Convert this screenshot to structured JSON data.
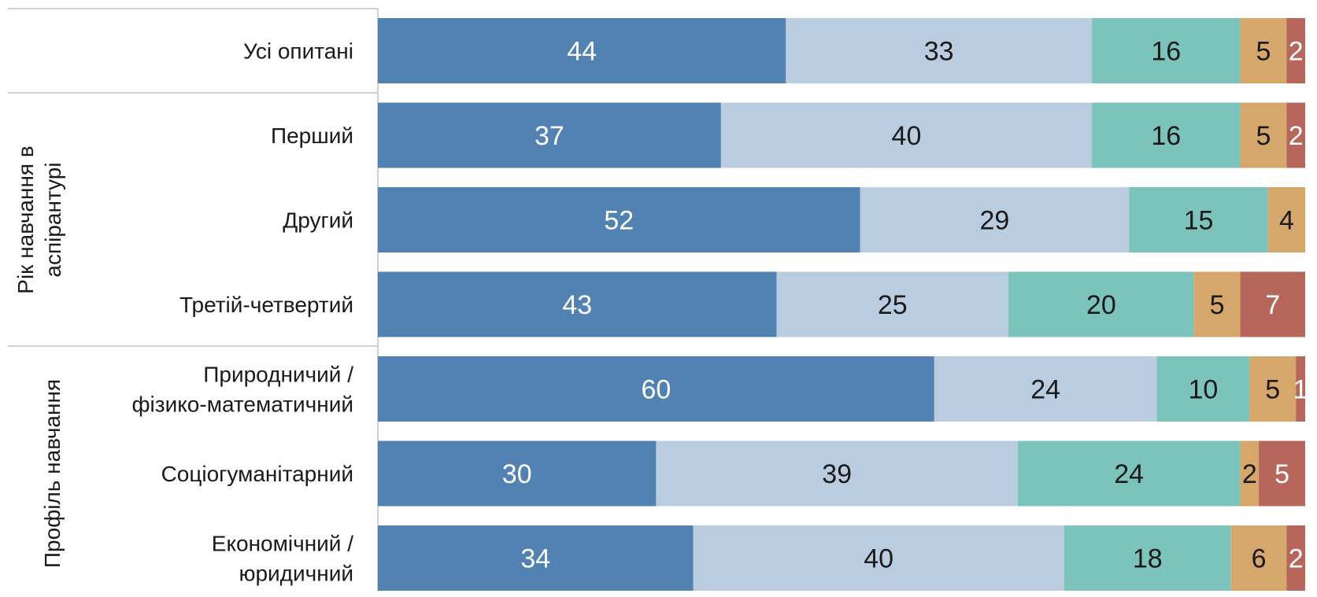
{
  "chart_data": {
    "type": "bar",
    "orientation": "horizontal",
    "stacked": true,
    "colors": [
      "#5282b1",
      "#b9cce0",
      "#7cc3bc",
      "#d5a76b",
      "#b6665a"
    ],
    "label_colors": [
      "#ffffff",
      "#1a1a1a",
      "#1a1a1a",
      "#1a1a1a",
      "#ffffff"
    ],
    "rows": [
      {
        "label": [
          "Усі опитані"
        ],
        "values": [
          44,
          33,
          16,
          5,
          2
        ]
      },
      {
        "label": [
          "Перший"
        ],
        "values": [
          37,
          40,
          16,
          5,
          2
        ]
      },
      {
        "label": [
          "Другий"
        ],
        "values": [
          52,
          29,
          15,
          4,
          0
        ]
      },
      {
        "label": [
          "Третій-четвертий"
        ],
        "values": [
          43,
          25,
          20,
          5,
          7
        ]
      },
      {
        "label": [
          "Природничий /",
          "фізико-математичний"
        ],
        "values": [
          60,
          24,
          10,
          5,
          1
        ]
      },
      {
        "label": [
          "Соціогуманітарний"
        ],
        "values": [
          30,
          39,
          24,
          2,
          5
        ]
      },
      {
        "label": [
          "Економічний /",
          "юридичний"
        ],
        "values": [
          34,
          40,
          18,
          6,
          2
        ]
      }
    ],
    "groups": [
      {
        "label": [
          "Рік навчання в",
          "аспірантурі"
        ],
        "rows": [
          1,
          3
        ]
      },
      {
        "label": [
          "Профіль навчання"
        ],
        "rows": [
          4,
          6
        ]
      }
    ]
  }
}
